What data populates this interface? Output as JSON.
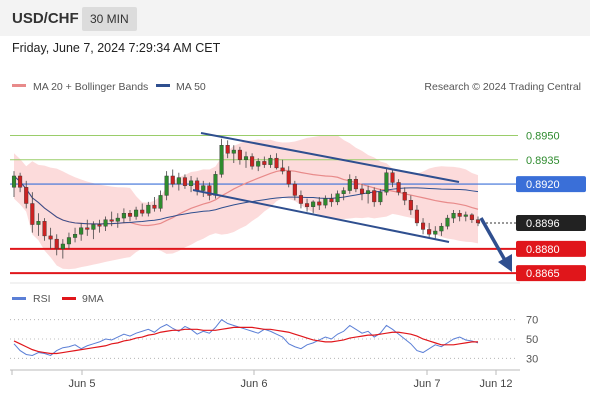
{
  "header": {
    "pair": "USD/CHF",
    "timeframe": "30 MIN"
  },
  "datetime": "Friday, June 7, 2024 7:29:34 AM CET",
  "legend": {
    "ma20": "MA 20 + Bollinger Bands",
    "ma50": "MA 50",
    "credit": "Research © 2024 Trading Central",
    "rsi": "RSI",
    "rsi9": "9MA"
  },
  "colors": {
    "up": "#2e8b2e",
    "down": "#cc2222",
    "ma20": "#e88a8a",
    "ma50": "#2f4f8f",
    "band": "#fcd5d5",
    "resistance": "#9acd6a",
    "pivot": "#3a6fd8",
    "support": "#e0161b",
    "channel": "#2f4f8f",
    "last": "#222222"
  },
  "chart_data": [
    {
      "type": "candlestick",
      "x_ticks": [
        "Jun 5",
        "Jun 6",
        "Jun 7",
        "Jun 12"
      ],
      "ylim": [
        0.8862,
        0.8975
      ],
      "ohlc": [
        [
          0.8918,
          0.8928,
          0.8912,
          0.8925
        ],
        [
          0.8925,
          0.8927,
          0.8915,
          0.8918
        ],
        [
          0.8918,
          0.8922,
          0.8905,
          0.8908
        ],
        [
          0.8908,
          0.8915,
          0.889,
          0.8895
        ],
        [
          0.8895,
          0.8902,
          0.8888,
          0.8897
        ],
        [
          0.8897,
          0.8899,
          0.8885,
          0.8888
        ],
        [
          0.8888,
          0.8893,
          0.888,
          0.8886
        ],
        [
          0.8886,
          0.8889,
          0.8876,
          0.888
        ],
        [
          0.888,
          0.8886,
          0.8874,
          0.8883
        ],
        [
          0.8883,
          0.889,
          0.888,
          0.8887
        ],
        [
          0.8887,
          0.8893,
          0.8884,
          0.8889
        ],
        [
          0.8889,
          0.8896,
          0.8885,
          0.8893
        ],
        [
          0.8893,
          0.8898,
          0.8888,
          0.8892
        ],
        [
          0.8892,
          0.8897,
          0.8886,
          0.8895
        ],
        [
          0.8895,
          0.8898,
          0.889,
          0.8894
        ],
        [
          0.8894,
          0.89,
          0.8891,
          0.8898
        ],
        [
          0.8898,
          0.8903,
          0.8894,
          0.8897
        ],
        [
          0.8897,
          0.8902,
          0.8893,
          0.8899
        ],
        [
          0.8899,
          0.8905,
          0.8896,
          0.8902
        ],
        [
          0.8902,
          0.8904,
          0.8897,
          0.89
        ],
        [
          0.89,
          0.8906,
          0.8898,
          0.8904
        ],
        [
          0.8904,
          0.8908,
          0.89,
          0.8902
        ],
        [
          0.8902,
          0.8909,
          0.89,
          0.8907
        ],
        [
          0.8907,
          0.8912,
          0.8903,
          0.8905
        ],
        [
          0.8905,
          0.8916,
          0.8903,
          0.8913
        ],
        [
          0.8913,
          0.8928,
          0.891,
          0.8925
        ],
        [
          0.8925,
          0.8929,
          0.8918,
          0.892
        ],
        [
          0.892,
          0.8927,
          0.8916,
          0.8924
        ],
        [
          0.8924,
          0.8926,
          0.8917,
          0.8919
        ],
        [
          0.8919,
          0.8925,
          0.8915,
          0.8922
        ],
        [
          0.8922,
          0.8924,
          0.8913,
          0.8916
        ],
        [
          0.8916,
          0.8922,
          0.8912,
          0.8919
        ],
        [
          0.8919,
          0.8921,
          0.891,
          0.8913
        ],
        [
          0.8913,
          0.8928,
          0.8911,
          0.8926
        ],
        [
          0.8926,
          0.8948,
          0.8924,
          0.8944
        ],
        [
          0.8944,
          0.8947,
          0.8936,
          0.8939
        ],
        [
          0.8939,
          0.8944,
          0.8933,
          0.8941
        ],
        [
          0.8941,
          0.8943,
          0.8932,
          0.8935
        ],
        [
          0.8935,
          0.894,
          0.893,
          0.8937
        ],
        [
          0.8937,
          0.8939,
          0.8929,
          0.8931
        ],
        [
          0.8931,
          0.8936,
          0.8928,
          0.8934
        ],
        [
          0.8934,
          0.8937,
          0.893,
          0.8932
        ],
        [
          0.8932,
          0.8938,
          0.893,
          0.8936
        ],
        [
          0.8936,
          0.8939,
          0.8929,
          0.893
        ],
        [
          0.893,
          0.8935,
          0.8926,
          0.8928
        ],
        [
          0.8928,
          0.8931,
          0.8918,
          0.892
        ],
        [
          0.892,
          0.8922,
          0.891,
          0.8913
        ],
        [
          0.8913,
          0.8916,
          0.8905,
          0.8908
        ],
        [
          0.8908,
          0.8911,
          0.8903,
          0.8906
        ],
        [
          0.8906,
          0.891,
          0.8902,
          0.8909
        ],
        [
          0.8909,
          0.8912,
          0.8904,
          0.8907
        ],
        [
          0.8907,
          0.8913,
          0.8905,
          0.8911
        ],
        [
          0.8911,
          0.8914,
          0.8906,
          0.8909
        ],
        [
          0.8909,
          0.8916,
          0.8907,
          0.8914
        ],
        [
          0.8914,
          0.8918,
          0.891,
          0.8916
        ],
        [
          0.8916,
          0.8926,
          0.8914,
          0.8923
        ],
        [
          0.8923,
          0.8925,
          0.8915,
          0.8917
        ],
        [
          0.8917,
          0.892,
          0.891,
          0.8914
        ],
        [
          0.8914,
          0.8919,
          0.8908,
          0.8916
        ],
        [
          0.8916,
          0.8918,
          0.8906,
          0.8909
        ],
        [
          0.8909,
          0.8917,
          0.8907,
          0.8915
        ],
        [
          0.8915,
          0.893,
          0.8913,
          0.8927
        ],
        [
          0.8927,
          0.8929,
          0.8918,
          0.8921
        ],
        [
          0.8921,
          0.8923,
          0.8913,
          0.8915
        ],
        [
          0.8915,
          0.8918,
          0.8907,
          0.891
        ],
        [
          0.891,
          0.8913,
          0.8901,
          0.8904
        ],
        [
          0.8904,
          0.8907,
          0.8894,
          0.8896
        ],
        [
          0.8896,
          0.8899,
          0.8889,
          0.8892
        ],
        [
          0.8892,
          0.8896,
          0.8887,
          0.8889
        ],
        [
          0.8889,
          0.8894,
          0.8886,
          0.8891
        ],
        [
          0.8891,
          0.8896,
          0.8888,
          0.8894
        ],
        [
          0.8894,
          0.8901,
          0.8892,
          0.8899
        ],
        [
          0.8899,
          0.8904,
          0.8896,
          0.8902
        ],
        [
          0.8902,
          0.8904,
          0.8897,
          0.89
        ],
        [
          0.89,
          0.8903,
          0.8897,
          0.8901
        ],
        [
          0.8901,
          0.8902,
          0.8896,
          0.8898
        ],
        [
          0.8898,
          0.89,
          0.8894,
          0.8896
        ]
      ],
      "annotations": {
        "resistance": [
          0.895,
          0.8935
        ],
        "pivot": 0.892,
        "last": 0.8896,
        "support": [
          0.888,
          0.8865
        ],
        "resistance_labels": [
          "0.8950",
          "0.8935"
        ],
        "pivot_label": "0.8920",
        "last_label": "0.8896",
        "support_labels": [
          "0.8880",
          "0.8865"
        ]
      }
    },
    {
      "type": "line",
      "series": [
        {
          "name": "RSI",
          "values": [
            45,
            38,
            34,
            33,
            36,
            35,
            33,
            38,
            41,
            42,
            44,
            40,
            43,
            45,
            47,
            50,
            49,
            52,
            55,
            53,
            56,
            58,
            60,
            57,
            62,
            65,
            61,
            58,
            63,
            60,
            55,
            58,
            56,
            62,
            70,
            66,
            64,
            62,
            60,
            58,
            56,
            60,
            58,
            55,
            52,
            45,
            42,
            40,
            44,
            46,
            49,
            52,
            50,
            55,
            58,
            64,
            60,
            56,
            58,
            52,
            56,
            64,
            60,
            55,
            50,
            45,
            38,
            36,
            40,
            44,
            42,
            46,
            50,
            52,
            49,
            48,
            46
          ]
        },
        {
          "name": "9MA",
          "values": [
            48,
            45,
            42,
            39,
            37,
            36,
            35,
            35,
            36,
            37,
            38,
            39,
            40,
            41,
            42,
            43,
            45,
            46,
            48,
            49,
            51,
            52,
            54,
            55,
            57,
            58,
            59,
            59,
            60,
            60,
            60,
            59,
            59,
            59,
            60,
            61,
            62,
            62,
            62,
            62,
            61,
            60,
            60,
            59,
            58,
            57,
            55,
            53,
            51,
            49,
            48,
            47,
            47,
            48,
            49,
            51,
            52,
            53,
            54,
            54,
            55,
            56,
            57,
            57,
            56,
            55,
            53,
            50,
            48,
            46,
            44,
            44,
            44,
            45,
            46,
            47,
            47
          ]
        }
      ],
      "y_ticks": [
        70,
        50,
        30
      ],
      "ylim": [
        20,
        80
      ]
    }
  ]
}
